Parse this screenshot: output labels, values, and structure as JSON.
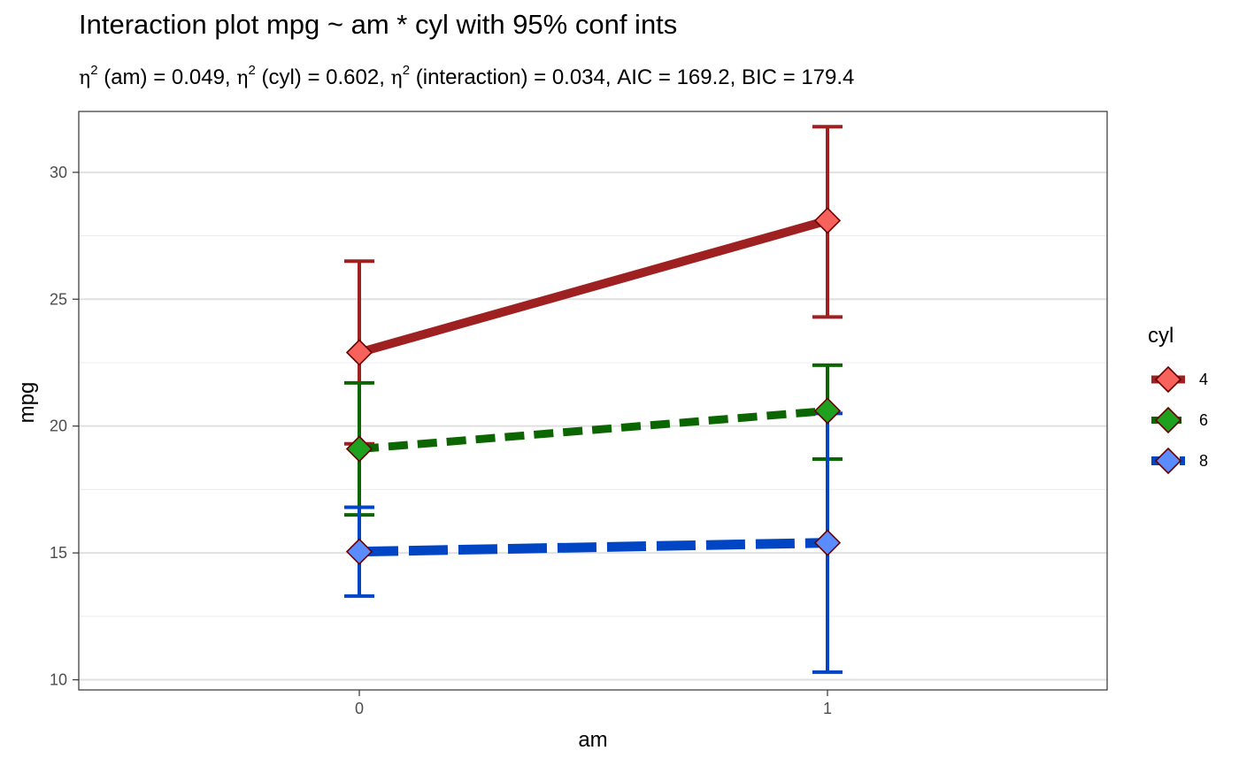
{
  "chart_data": {
    "type": "line",
    "title": "Interaction plot  mpg ~ am * cyl with 95% conf ints",
    "subtitle": {
      "eta_symbol": "η",
      "sup": "2",
      "part_am": " (am) = 0.049, ",
      "part_cyl": " (cyl) = 0.602, ",
      "part_interaction": " (interaction) = 0.034, AIC = 169.2, BIC = 179.4"
    },
    "xlabel": "am",
    "ylabel": "mpg",
    "x": [
      "0",
      "1"
    ],
    "ylim": [
      9.6,
      32.4
    ],
    "yticks": [
      10,
      15,
      20,
      25,
      30
    ],
    "yminor": [
      12.5,
      17.5,
      22.5,
      27.5,
      32.5
    ],
    "grid": true,
    "legend": {
      "title": "cyl",
      "position": "right"
    },
    "series": [
      {
        "name": "4",
        "values": [
          22.9,
          28.1
        ],
        "ci_low": [
          19.3,
          24.3
        ],
        "ci_high": [
          26.5,
          31.8
        ],
        "line_color": "#9e2020",
        "fill_color": "#f8625d",
        "dash": "solid"
      },
      {
        "name": "6",
        "values": [
          19.1,
          20.6
        ],
        "ci_low": [
          16.5,
          18.7
        ],
        "ci_high": [
          21.7,
          22.4
        ],
        "line_color": "#0c6600",
        "fill_color": "#1ea11e",
        "dash": "dashed"
      },
      {
        "name": "8",
        "values": [
          15.05,
          15.4
        ],
        "ci_low": [
          13.3,
          10.3
        ],
        "ci_high": [
          16.8,
          20.5
        ],
        "line_color": "#0045c4",
        "fill_color": "#5b8cff",
        "dash": "longdash"
      }
    ]
  }
}
